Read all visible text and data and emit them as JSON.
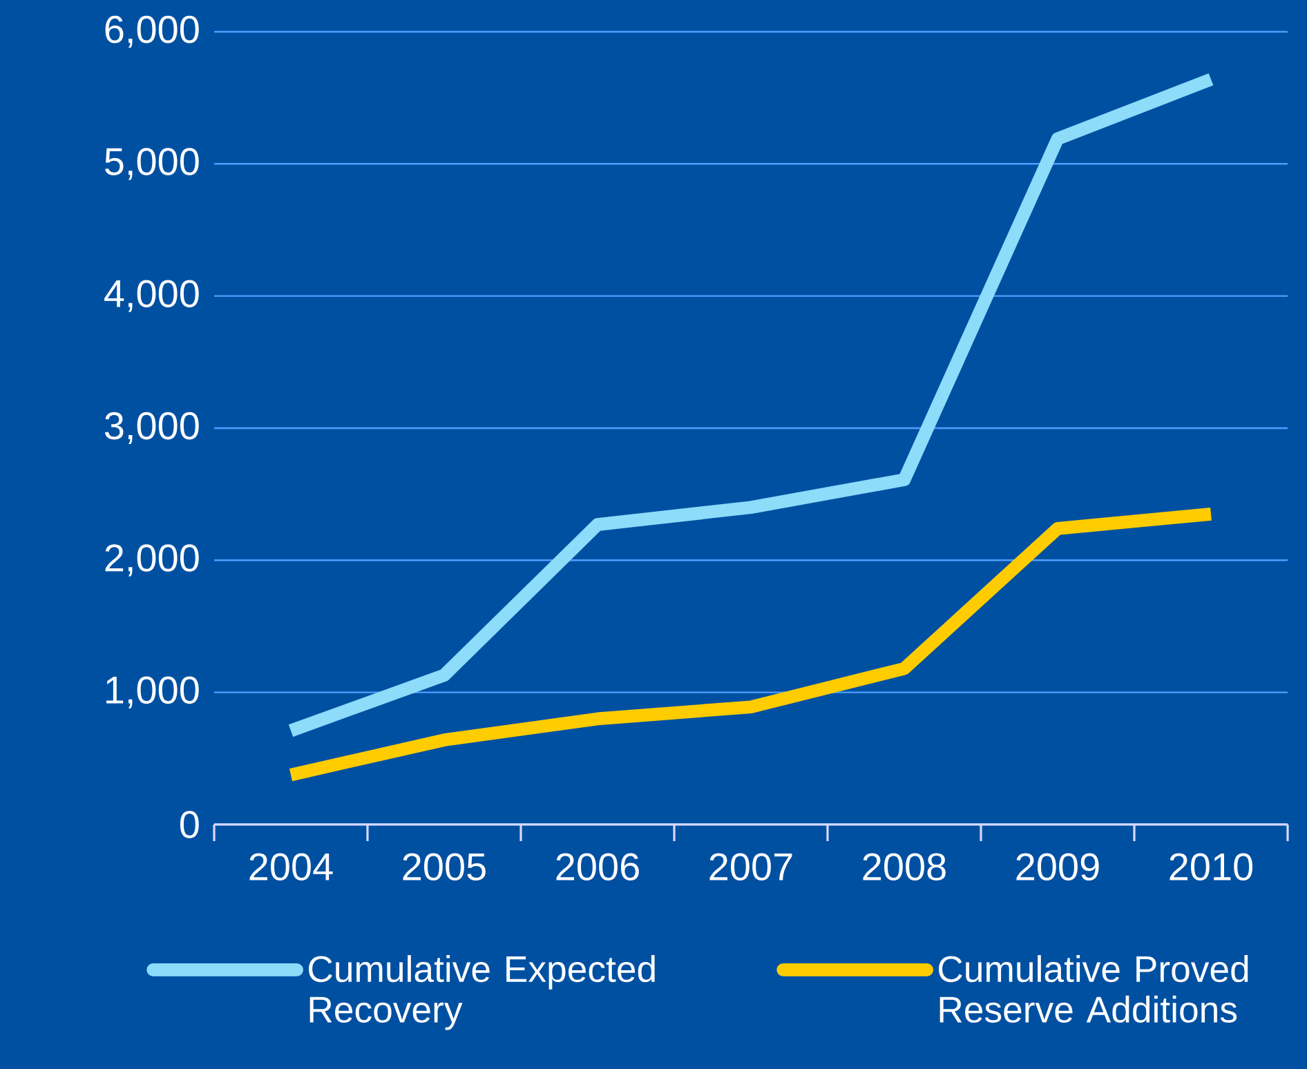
{
  "chart_data": {
    "type": "line",
    "categories": [
      "2004",
      "2005",
      "2006",
      "2007",
      "2008",
      "2009",
      "2010"
    ],
    "series": [
      {
        "name": "Cumulative Expected Recovery",
        "color": "#8cdcfa",
        "values": [
          710,
          1130,
          2270,
          2400,
          2610,
          5190,
          5640
        ]
      },
      {
        "name": "Cumulative Proved Reserve Additions",
        "color": "#ffcc00",
        "values": [
          376,
          640,
          800,
          890,
          1180,
          2240,
          2350
        ]
      }
    ],
    "ylim": [
      0,
      6000
    ],
    "yticks": [
      0,
      {
        "value": 1000,
        "label": "1,000"
      },
      {
        "value": 2000,
        "label": "2,000"
      },
      {
        "value": 3000,
        "label": "3,000"
      },
      {
        "value": 4000,
        "label": "4,000"
      },
      {
        "value": 5000,
        "label": "5,000"
      },
      {
        "value": 6000,
        "label": "6,000"
      }
    ],
    "grid": "y",
    "legend": "bottom",
    "marker": "none",
    "line_style": "solid"
  }
}
